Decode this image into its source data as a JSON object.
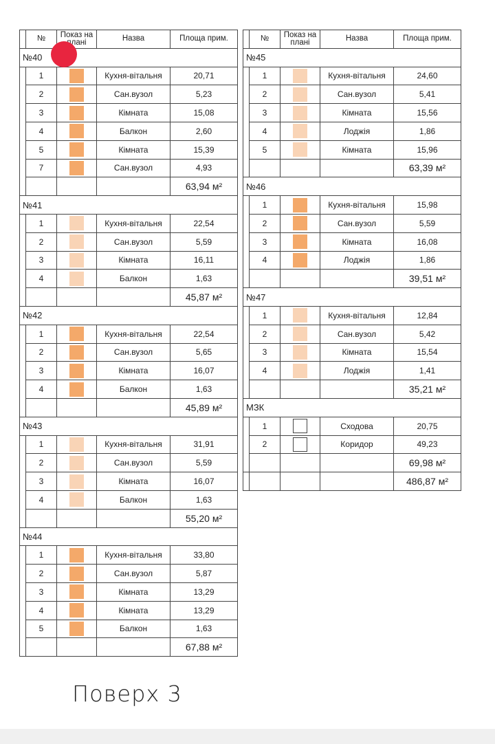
{
  "colors": {
    "dark": "#f4a96a",
    "light": "#f9d4b6",
    "none": "#ffffff",
    "marker": "#e8253f"
  },
  "headers": {
    "no": "№",
    "show": "Показ на плані",
    "name": "Назва",
    "area": "Площа прим."
  },
  "left": [
    {
      "title": "№40",
      "total": "63,94 м²",
      "rooms": [
        {
          "n": "1",
          "c": "dark",
          "name": "Кухня-вітальня",
          "area": "20,71"
        },
        {
          "n": "2",
          "c": "dark",
          "name": "Сан.вузол",
          "area": "5,23"
        },
        {
          "n": "3",
          "c": "dark",
          "name": "Кімната",
          "area": "15,08"
        },
        {
          "n": "4",
          "c": "dark",
          "name": "Балкон",
          "area": "2,60"
        },
        {
          "n": "5",
          "c": "dark",
          "name": "Кімната",
          "area": "15,39"
        },
        {
          "n": "7",
          "c": "dark",
          "name": "Сан.вузол",
          "area": "4,93"
        }
      ]
    },
    {
      "title": "№41",
      "total": "45,87 м²",
      "rooms": [
        {
          "n": "1",
          "c": "light",
          "name": "Кухня-вітальня",
          "area": "22,54"
        },
        {
          "n": "2",
          "c": "light",
          "name": "Сан.вузол",
          "area": "5,59"
        },
        {
          "n": "3",
          "c": "light",
          "name": "Кімната",
          "area": "16,11"
        },
        {
          "n": "4",
          "c": "light",
          "name": "Балкон",
          "area": "1,63"
        }
      ]
    },
    {
      "title": "№42",
      "total": "45,89 м²",
      "rooms": [
        {
          "n": "1",
          "c": "dark",
          "name": "Кухня-вітальня",
          "area": "22,54"
        },
        {
          "n": "2",
          "c": "dark",
          "name": "Сан.вузол",
          "area": "5,65"
        },
        {
          "n": "3",
          "c": "dark",
          "name": "Кімната",
          "area": "16,07"
        },
        {
          "n": "4",
          "c": "dark",
          "name": "Балкон",
          "area": "1,63"
        }
      ]
    },
    {
      "title": "№43",
      "total": "55,20 м²",
      "rooms": [
        {
          "n": "1",
          "c": "light",
          "name": "Кухня-вітальня",
          "area": "31,91"
        },
        {
          "n": "2",
          "c": "light",
          "name": "Сан.вузол",
          "area": "5,59"
        },
        {
          "n": "3",
          "c": "light",
          "name": "Кімната",
          "area": "16,07"
        },
        {
          "n": "4",
          "c": "light",
          "name": "Балкон",
          "area": "1,63"
        }
      ]
    },
    {
      "title": "№44",
      "total": "67,88 м²",
      "rooms": [
        {
          "n": "1",
          "c": "dark",
          "name": "Кухня-вітальня",
          "area": "33,80"
        },
        {
          "n": "2",
          "c": "dark",
          "name": "Сан.вузол",
          "area": "5,87"
        },
        {
          "n": "3",
          "c": "dark",
          "name": "Кімната",
          "area": "13,29"
        },
        {
          "n": "4",
          "c": "dark",
          "name": "Кімната",
          "area": "13,29"
        },
        {
          "n": "5",
          "c": "dark",
          "name": "Балкон",
          "area": "1,63"
        }
      ]
    }
  ],
  "right": [
    {
      "title": "№45",
      "total": "63,39 м²",
      "rooms": [
        {
          "n": "1",
          "c": "light",
          "name": "Кухня-вітальня",
          "area": "24,60"
        },
        {
          "n": "2",
          "c": "light",
          "name": "Сан.вузол",
          "area": "5,41"
        },
        {
          "n": "3",
          "c": "light",
          "name": "Кімната",
          "area": "15,56"
        },
        {
          "n": "4",
          "c": "light",
          "name": "Лоджія",
          "area": "1,86"
        },
        {
          "n": "5",
          "c": "light",
          "name": "Кімната",
          "area": "15,96"
        }
      ]
    },
    {
      "title": "№46",
      "total": "39,51 м²",
      "rooms": [
        {
          "n": "1",
          "c": "dark",
          "name": "Кухня-вітальня",
          "area": "15,98"
        },
        {
          "n": "2",
          "c": "dark",
          "name": "Сан.вузол",
          "area": "5,59"
        },
        {
          "n": "3",
          "c": "dark",
          "name": "Кімната",
          "area": "16,08"
        },
        {
          "n": "4",
          "c": "dark",
          "name": "Лоджія",
          "area": "1,86"
        }
      ]
    },
    {
      "title": "№47",
      "total": "35,21 м²",
      "rooms": [
        {
          "n": "1",
          "c": "light",
          "name": "Кухня-вітальня",
          "area": "12,84"
        },
        {
          "n": "2",
          "c": "light",
          "name": "Сан.вузол",
          "area": "5,42"
        },
        {
          "n": "3",
          "c": "light",
          "name": "Кімната",
          "area": "15,54"
        },
        {
          "n": "4",
          "c": "light",
          "name": "Лоджія",
          "area": "1,41"
        }
      ]
    },
    {
      "title": "МЗК",
      "total": "69,98 м²",
      "rooms": [
        {
          "n": "1",
          "c": "none",
          "name": "Сходова",
          "area": "20,75"
        },
        {
          "n": "2",
          "c": "none",
          "name": "Коридор",
          "area": "49,23"
        }
      ]
    }
  ],
  "grand_total": "486,87 м²",
  "floor_label": "Поверх 3"
}
